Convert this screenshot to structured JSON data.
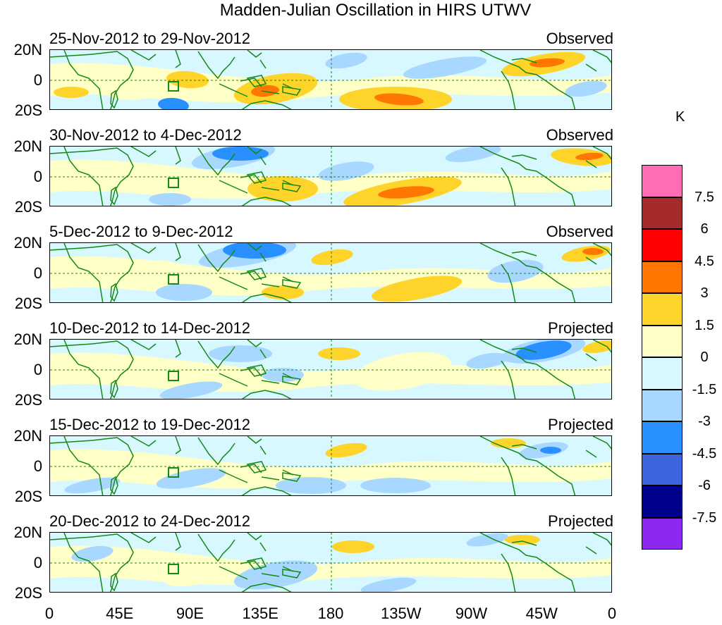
{
  "title": "Madden-Julian Oscillation in HIRS UTWV",
  "panels": [
    {
      "dates": "25-Nov-2012 to 29-Nov-2012",
      "tag": "Observed"
    },
    {
      "dates": "30-Nov-2012 to 4-Dec-2012",
      "tag": "Observed"
    },
    {
      "dates": "5-Dec-2012 to 9-Dec-2012",
      "tag": "Observed"
    },
    {
      "dates": "10-Dec-2012 to 14-Dec-2012",
      "tag": "Projected"
    },
    {
      "dates": "15-Dec-2012 to 19-Dec-2012",
      "tag": "Projected"
    },
    {
      "dates": "20-Dec-2012 to 24-Dec-2012",
      "tag": "Projected"
    }
  ],
  "lat_labels": [
    "20N",
    "0",
    "20S"
  ],
  "lon_labels": [
    "0",
    "45E",
    "90E",
    "135E",
    "180",
    "135W",
    "90W",
    "45W",
    "0"
  ],
  "colorbar": {
    "unit": "K",
    "labels": [
      "7.5",
      "6",
      "4.5",
      "3",
      "1.5",
      "0",
      "-1.5",
      "-3",
      "-4.5",
      "-6",
      "-7.5"
    ],
    "colors": [
      "#ff6eb4",
      "#a52a2a",
      "#ff0000",
      "#ff7700",
      "#ffd42a",
      "#ffffc8",
      "#d8f8ff",
      "#a8d8ff",
      "#2891ff",
      "#3c64dc",
      "#00008c",
      "#8c28f0"
    ]
  },
  "palette": {
    "neg1": "#d8f8ff",
    "neg2": "#a8d8ff",
    "neg3": "#2891ff",
    "pos1": "#ffffc8",
    "pos2": "#ffd42a",
    "pos3": "#ff7700",
    "coast": "#138a13"
  }
}
